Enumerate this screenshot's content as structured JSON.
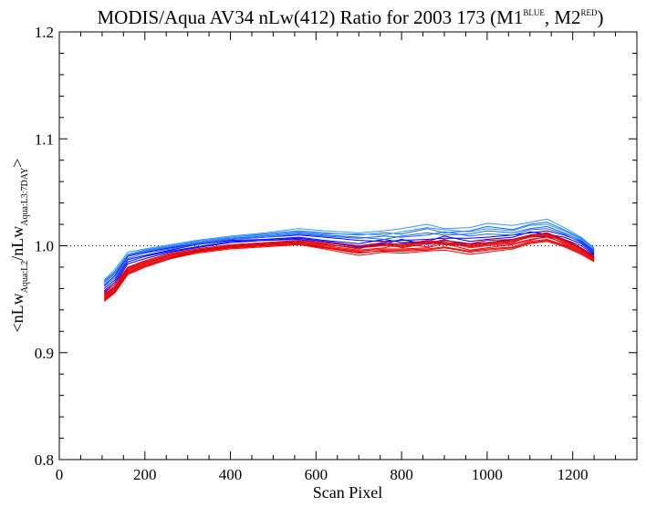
{
  "chart_data": {
    "type": "line",
    "title": {
      "main": "MODIS/Aqua AV34 nLw(412) Ratio for 2003 173 (M1",
      "sup1": "BLUE",
      "mid": ", M2",
      "sup2": "RED",
      "end": ")"
    },
    "xlabel": "Scan Pixel",
    "ylabel": {
      "p1": "<nLw",
      "sub1": "Aqua:L2",
      "p2": "/nLw",
      "sub2": "Aqua:L3:7DAY",
      "p3": ">"
    },
    "xlim": [
      0,
      1350
    ],
    "ylim": [
      0.8,
      1.2
    ],
    "x_ticks": [
      0,
      200,
      400,
      600,
      800,
      1000,
      1200
    ],
    "y_ticks": [
      0.8,
      0.9,
      1.0,
      1.1,
      1.2
    ],
    "x_tick_labels": [
      "0",
      "200",
      "400",
      "600",
      "800",
      "1000",
      "1200"
    ],
    "y_tick_labels": [
      "0.8",
      "0.9",
      "1.0",
      "1.1",
      "1.2"
    ],
    "reference_line": 1.0,
    "x": [
      105,
      130,
      160,
      200,
      260,
      320,
      400,
      480,
      560,
      620,
      700,
      760,
      800,
      860,
      900,
      960,
      1000,
      1060,
      1100,
      1140,
      1180,
      1220,
      1250
    ],
    "series": [
      {
        "group": "M1",
        "color": "#0000ff",
        "values": [
          0.963,
          0.972,
          0.99,
          0.994,
          0.998,
          1.002,
          1.006,
          1.008,
          1.01,
          1.008,
          1.005,
          1.004,
          1.005,
          1.006,
          1.007,
          1.007,
          1.008,
          1.01,
          1.012,
          1.014,
          1.01,
          1.004,
          0.995
        ]
      },
      {
        "group": "M1",
        "color": "#0000ff",
        "values": [
          0.96,
          0.968,
          0.987,
          0.991,
          0.996,
          1.001,
          1.005,
          1.006,
          1.008,
          1.005,
          1.002,
          1.006,
          1.003,
          1.004,
          1.009,
          1.004,
          1.006,
          1.008,
          1.013,
          1.011,
          1.008,
          1.002,
          0.993
        ]
      },
      {
        "group": "M1",
        "color": "#0000ff",
        "values": [
          0.958,
          0.966,
          0.985,
          0.99,
          0.995,
          0.999,
          1.004,
          1.005,
          1.007,
          1.004,
          1.0,
          1.002,
          1.006,
          1.001,
          1.005,
          1.002,
          1.003,
          1.006,
          1.01,
          1.012,
          1.006,
          1.0,
          0.992
        ]
      },
      {
        "group": "M1",
        "color": "#0000ff",
        "values": [
          0.956,
          0.964,
          0.983,
          0.988,
          0.994,
          0.998,
          1.003,
          1.005,
          1.006,
          1.003,
          0.999,
          1.001,
          1.002,
          1.003,
          1.001,
          1.0,
          1.002,
          1.004,
          1.008,
          1.009,
          1.005,
          0.998,
          0.991
        ]
      },
      {
        "group": "M1",
        "color": "#1a66ff",
        "values": [
          0.967,
          0.976,
          0.992,
          0.996,
          1.0,
          1.004,
          1.008,
          1.011,
          1.014,
          1.012,
          1.01,
          1.012,
          1.011,
          1.016,
          1.012,
          1.014,
          1.018,
          1.015,
          1.02,
          1.022,
          1.015,
          1.007,
          0.997
        ]
      },
      {
        "group": "M1",
        "color": "#1a66ff",
        "values": [
          0.965,
          0.974,
          0.991,
          0.995,
          0.999,
          1.003,
          1.007,
          1.009,
          1.012,
          1.01,
          1.008,
          1.006,
          1.009,
          1.012,
          1.01,
          1.011,
          1.014,
          1.012,
          1.016,
          1.018,
          1.012,
          1.005,
          0.996
        ]
      },
      {
        "group": "M1",
        "color": "#1a66ff",
        "values": [
          0.962,
          0.97,
          0.988,
          0.993,
          0.997,
          1.002,
          1.006,
          1.008,
          1.011,
          1.009,
          1.007,
          1.009,
          1.008,
          1.01,
          1.013,
          1.009,
          1.011,
          1.01,
          1.015,
          1.016,
          1.011,
          1.003,
          0.994
        ]
      },
      {
        "group": "M1",
        "color": "#3399ff",
        "values": [
          0.968,
          0.978,
          0.994,
          0.997,
          1.001,
          1.005,
          1.009,
          1.012,
          1.016,
          1.014,
          1.012,
          1.014,
          1.016,
          1.02,
          1.016,
          1.017,
          1.021,
          1.019,
          1.022,
          1.025,
          1.017,
          1.008,
          0.998
        ]
      },
      {
        "group": "M1",
        "color": "#3399ff",
        "values": [
          0.966,
          0.975,
          0.992,
          0.995,
          1.0,
          1.004,
          1.008,
          1.01,
          1.013,
          1.011,
          1.011,
          1.01,
          1.013,
          1.017,
          1.015,
          1.013,
          1.016,
          1.014,
          1.019,
          1.02,
          1.014,
          1.006,
          0.997
        ]
      },
      {
        "group": "M2",
        "color": "#ff0000",
        "values": [
          0.955,
          0.962,
          0.978,
          0.984,
          0.991,
          0.996,
          1.0,
          1.002,
          1.004,
          1.001,
          0.998,
          1.0,
          0.999,
          1.003,
          1.001,
          1.0,
          1.002,
          1.004,
          1.008,
          1.01,
          1.004,
          0.997,
          0.989
        ]
      },
      {
        "group": "M2",
        "color": "#ff0000",
        "values": [
          0.952,
          0.96,
          0.976,
          0.983,
          0.99,
          0.995,
          0.999,
          1.001,
          1.003,
          1.0,
          0.996,
          0.998,
          1.002,
          0.999,
          1.004,
          0.998,
          1.0,
          1.002,
          1.006,
          1.008,
          1.003,
          0.996,
          0.988
        ]
      },
      {
        "group": "M2",
        "color": "#ff0000",
        "values": [
          0.95,
          0.958,
          0.975,
          0.982,
          0.989,
          0.994,
          0.998,
          1.0,
          1.002,
          0.998,
          0.993,
          0.996,
          0.996,
          0.997,
          0.999,
          0.995,
          0.997,
          0.999,
          1.004,
          1.006,
          1.001,
          0.994,
          0.987
        ]
      },
      {
        "group": "M2",
        "color": "#ff0000",
        "values": [
          0.948,
          0.956,
          0.973,
          0.98,
          0.988,
          0.993,
          0.997,
          0.999,
          1.001,
          0.997,
          0.991,
          0.994,
          0.993,
          0.995,
          0.996,
          0.992,
          0.994,
          0.997,
          1.002,
          1.004,
          0.999,
          0.992,
          0.985
        ]
      },
      {
        "group": "M2",
        "color": "#e60000",
        "values": [
          0.957,
          0.964,
          0.98,
          0.986,
          0.993,
          0.997,
          1.001,
          1.003,
          1.005,
          1.003,
          1.0,
          1.003,
          1.001,
          1.005,
          1.003,
          1.002,
          1.005,
          1.006,
          1.01,
          1.012,
          1.006,
          0.998,
          0.99
        ]
      },
      {
        "group": "M2",
        "color": "#e60000",
        "values": [
          0.953,
          0.961,
          0.977,
          0.984,
          0.991,
          0.996,
          1.0,
          1.002,
          1.004,
          1.002,
          0.997,
          1.004,
          0.998,
          1.002,
          1.006,
          0.999,
          1.001,
          1.003,
          1.009,
          1.011,
          1.005,
          0.997,
          0.989
        ]
      },
      {
        "group": "M2",
        "color": "#e60000",
        "values": [
          0.951,
          0.959,
          0.975,
          0.982,
          0.989,
          0.995,
          0.999,
          1.001,
          1.003,
          0.999,
          0.995,
          0.997,
          0.997,
          0.998,
          1.002,
          0.996,
          0.998,
          1.001,
          1.005,
          1.009,
          1.002,
          0.995,
          0.987
        ]
      },
      {
        "group": "M2",
        "color": "#cc0000",
        "values": [
          0.954,
          0.962,
          0.979,
          0.985,
          0.992,
          0.996,
          1.0,
          1.002,
          1.004,
          1.001,
          0.998,
          1.001,
          1.0,
          1.004,
          1.002,
          1.001,
          1.003,
          1.005,
          1.009,
          1.011,
          1.005,
          0.997,
          0.989
        ]
      },
      {
        "group": "M2",
        "color": "#cc0000",
        "values": [
          0.949,
          0.957,
          0.974,
          0.981,
          0.988,
          0.994,
          0.998,
          1.0,
          1.002,
          0.998,
          0.994,
          0.995,
          0.995,
          0.996,
          0.998,
          0.994,
          0.996,
          0.998,
          1.003,
          1.005,
          1.0,
          0.993,
          0.986
        ]
      }
    ]
  }
}
